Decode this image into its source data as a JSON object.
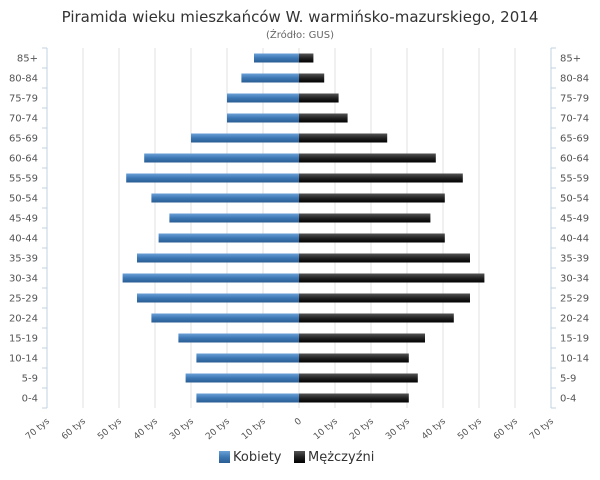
{
  "chart_data": {
    "type": "bar",
    "orientation": "horizontal-population-pyramid",
    "title": "Piramida wieku mieszkańców W. warmińsko-mazurskiego, 2014",
    "subtitle": "(Źródło: GUS)",
    "categories": [
      "85+",
      "80-84",
      "75-79",
      "70-74",
      "65-69",
      "60-64",
      "55-59",
      "50-54",
      "45-49",
      "40-44",
      "35-39",
      "30-34",
      "25-29",
      "20-24",
      "15-19",
      "10-14",
      "5-9",
      "0-4"
    ],
    "series": [
      {
        "name": "Kobiety",
        "color": "#3d78b4",
        "side": "left",
        "values": [
          12.5,
          16,
          20,
          20,
          30,
          43,
          48,
          41,
          36,
          39,
          45,
          49,
          45,
          41,
          33.5,
          28.5,
          31.5,
          28.5
        ]
      },
      {
        "name": "Mężczyźni",
        "color": "#222222",
        "side": "right",
        "values": [
          4,
          7,
          11,
          13.5,
          24.5,
          38,
          45.5,
          40.5,
          36.5,
          40.5,
          47.5,
          51.5,
          47.5,
          43,
          35,
          30.5,
          33,
          30.5
        ]
      }
    ],
    "xlim": [
      -70,
      70
    ],
    "xticks": [
      "70 tys",
      "60 tys",
      "50 tys",
      "40 tys",
      "30 tys",
      "20 tys",
      "10 tys",
      "0",
      "10 tys",
      "20 tys",
      "30 tys",
      "40 tys",
      "50 tys",
      "60 tys",
      "70 tys"
    ],
    "grid": true,
    "legend": "bottom-center"
  }
}
